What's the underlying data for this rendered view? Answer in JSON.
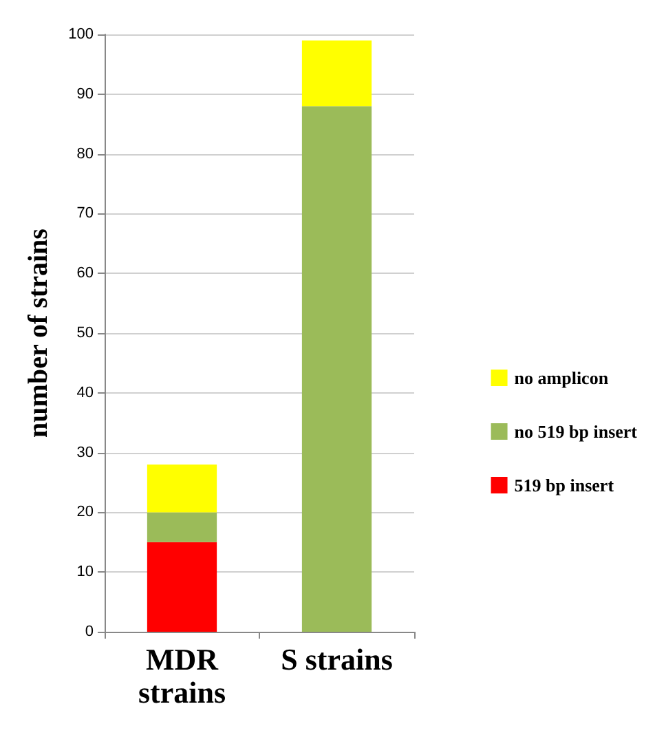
{
  "chart_data": {
    "type": "bar",
    "stacked": true,
    "ylabel": "number of strains",
    "categories": [
      "MDR\nstrains",
      "S strains"
    ],
    "series": [
      {
        "name": "519 bp insert",
        "color": "#ff0000",
        "values": [
          15,
          0
        ]
      },
      {
        "name": "no 519 bp insert",
        "color": "#9bbb59",
        "values": [
          5,
          88
        ]
      },
      {
        "name": "no amplicon",
        "color": "#ffff00",
        "values": [
          8,
          11
        ]
      }
    ],
    "ylim": [
      0,
      100
    ],
    "yticks": [
      0,
      10,
      20,
      30,
      40,
      50,
      60,
      70,
      80,
      90,
      100
    ],
    "grid": "y",
    "legend": "right"
  }
}
